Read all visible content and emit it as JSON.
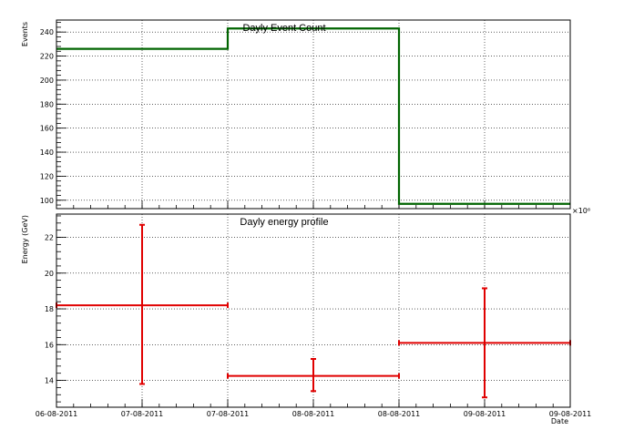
{
  "chart_data": [
    {
      "type": "step",
      "title": "Dayly Event Count",
      "ylabel": "Events",
      "xlabel": "",
      "ylim": [
        93,
        250
      ],
      "yticks": [
        100,
        120,
        140,
        160,
        180,
        200,
        220,
        240
      ],
      "x_multiplier_label": "×10⁶",
      "bins": [
        {
          "x_start": 0.0,
          "x_end": 1.0,
          "value": 226
        },
        {
          "x_start": 1.0,
          "x_end": 2.0,
          "value": 243
        },
        {
          "x_start": 2.0,
          "x_end": 3.0,
          "value": 97
        }
      ],
      "line_color": "#006400",
      "grid": true
    },
    {
      "type": "errorbar",
      "title": "Dayly energy profile",
      "ylabel": "Energy (GeV)",
      "xlabel": "Date",
      "ylim": [
        12.5,
        23.3
      ],
      "yticks": [
        14,
        16,
        18,
        20,
        22
      ],
      "xticks": [
        "06-08-2011",
        "07-08-2011",
        "07-08-2011",
        "08-08-2011",
        "08-08-2011",
        "09-08-2011",
        "09-08-2011"
      ],
      "xtick_positions": [
        0,
        0.5,
        1.0,
        1.5,
        2.0,
        2.5,
        3.0
      ],
      "points": [
        {
          "x": 0.5,
          "x_err": 0.5,
          "y": 18.2,
          "y_low": 13.8,
          "y_high": 22.7
        },
        {
          "x": 1.5,
          "x_err": 0.5,
          "y": 14.25,
          "y_low": 13.4,
          "y_high": 15.2
        },
        {
          "x": 2.5,
          "x_err": 0.5,
          "y": 16.1,
          "y_low": 13.05,
          "y_high": 19.15
        }
      ],
      "marker_color": "#e00000",
      "grid": true
    }
  ]
}
